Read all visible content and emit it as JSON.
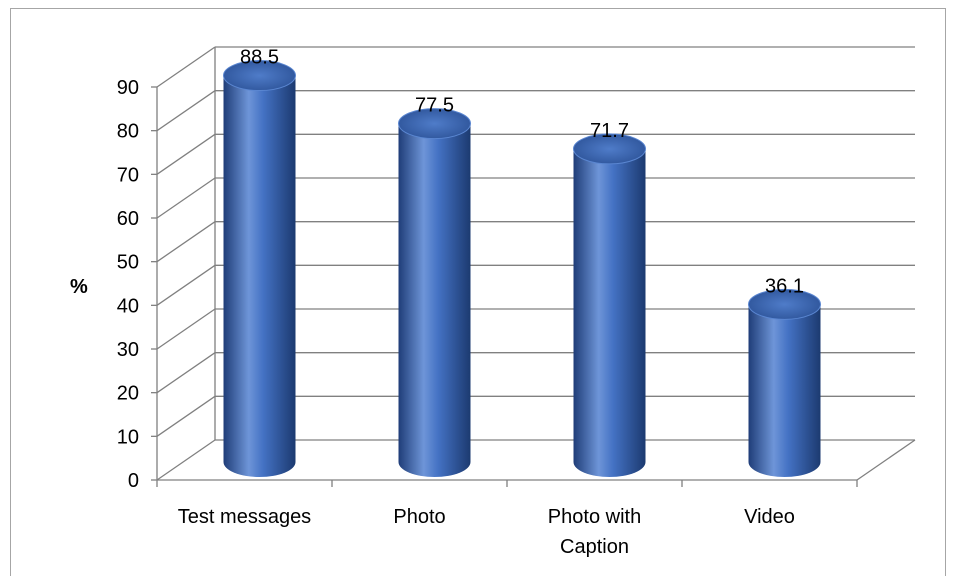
{
  "chart_data": {
    "type": "bar",
    "style": "3d-cylinder",
    "categories": [
      "Test messages",
      "Photo",
      "Photo with Caption",
      "Video"
    ],
    "category_lines": [
      [
        "Test messages"
      ],
      [
        "Photo"
      ],
      [
        "Photo with",
        "Caption"
      ],
      [
        "Video"
      ]
    ],
    "values": [
      88.5,
      77.5,
      71.7,
      36.1
    ],
    "data_labels": [
      "88.5",
      "77.5",
      "71.7",
      "36.1"
    ],
    "ylabel": "%",
    "xlabel": "",
    "title": "",
    "ylim": [
      0,
      90
    ],
    "yticks": [
      0,
      10,
      20,
      30,
      40,
      50,
      60,
      70,
      80,
      90
    ],
    "grid": true,
    "legend": "none",
    "colors": {
      "bar": "#4472c4",
      "bar_dark": "#1f3d78",
      "bar_light": "#8fb0e6",
      "grid": "#808080"
    }
  }
}
